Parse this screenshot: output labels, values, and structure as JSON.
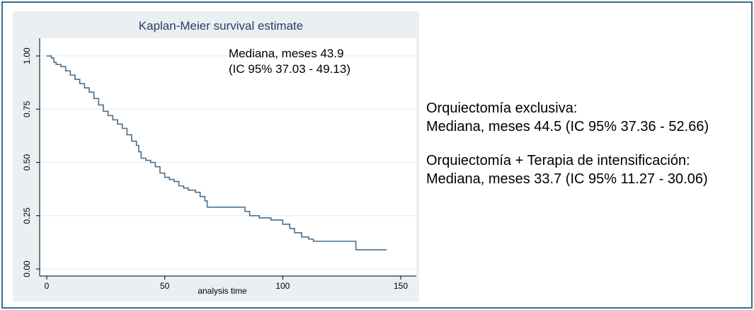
{
  "chart_data": {
    "type": "line",
    "title": "Kaplan-Meier survival estimate",
    "xlabel": "analysis time",
    "ylabel": "",
    "xlim": [
      0,
      150
    ],
    "ylim": [
      0,
      1.05
    ],
    "xticks": [
      0,
      50,
      100,
      150
    ],
    "xtick_labels": [
      "0",
      "50",
      "100",
      "150"
    ],
    "yticks": [
      0,
      0.25,
      0.5,
      0.75,
      1.0
    ],
    "ytick_labels": [
      "0.00",
      "0.25",
      "0.50",
      "0.75",
      "1.00"
    ],
    "grid": true,
    "series": [
      {
        "name": "",
        "color": "#4a6e8c",
        "step": true,
        "points": [
          [
            0,
            1.0
          ],
          [
            2,
            0.99
          ],
          [
            3,
            0.97
          ],
          [
            4,
            0.96
          ],
          [
            6,
            0.95
          ],
          [
            8,
            0.93
          ],
          [
            10,
            0.91
          ],
          [
            12,
            0.89
          ],
          [
            14,
            0.87
          ],
          [
            16,
            0.85
          ],
          [
            18,
            0.83
          ],
          [
            20,
            0.8
          ],
          [
            22,
            0.77
          ],
          [
            24,
            0.74
          ],
          [
            26,
            0.72
          ],
          [
            28,
            0.7
          ],
          [
            30,
            0.68
          ],
          [
            32,
            0.66
          ],
          [
            34,
            0.63
          ],
          [
            36,
            0.6
          ],
          [
            38,
            0.58
          ],
          [
            39,
            0.55
          ],
          [
            40,
            0.52
          ],
          [
            42,
            0.51
          ],
          [
            44,
            0.5
          ],
          [
            46,
            0.48
          ],
          [
            48,
            0.45
          ],
          [
            50,
            0.43
          ],
          [
            52,
            0.42
          ],
          [
            54,
            0.41
          ],
          [
            56,
            0.39
          ],
          [
            58,
            0.38
          ],
          [
            60,
            0.37
          ],
          [
            63,
            0.36
          ],
          [
            65,
            0.34
          ],
          [
            67,
            0.32
          ],
          [
            68,
            0.29
          ],
          [
            76,
            0.29
          ],
          [
            80,
            0.29
          ],
          [
            84,
            0.27
          ],
          [
            86,
            0.25
          ],
          [
            90,
            0.24
          ],
          [
            95,
            0.23
          ],
          [
            100,
            0.21
          ],
          [
            103,
            0.19
          ],
          [
            105,
            0.17
          ],
          [
            108,
            0.15
          ],
          [
            111,
            0.14
          ],
          [
            113,
            0.13
          ],
          [
            120,
            0.13
          ],
          [
            125,
            0.13
          ],
          [
            130,
            0.13
          ],
          [
            131,
            0.09
          ],
          [
            137,
            0.09
          ],
          [
            144,
            0.09
          ]
        ]
      }
    ],
    "annotations": [
      "Mediana, meses 43.9",
      "(IC 95% 37.03 - 49.13)"
    ]
  },
  "side_text": {
    "block1": {
      "line1": "Orquiectomía exclusiva:",
      "line2": "Mediana, meses  44.5 (IC 95% 37.36 - 52.66)"
    },
    "block2": {
      "line1": "Orquiectomía + Terapia de intensificación:",
      "line2": "Mediana, meses  33.7 (IC 95% 11.27 - 30.06)"
    }
  },
  "colors": {
    "frame": "#3a6f8a",
    "panel_bg": "#e9eff3",
    "plot_bg": "#ffffff",
    "grid": "#e3e8ec",
    "line": "#4a6e8c",
    "title": "#2a3e66"
  }
}
